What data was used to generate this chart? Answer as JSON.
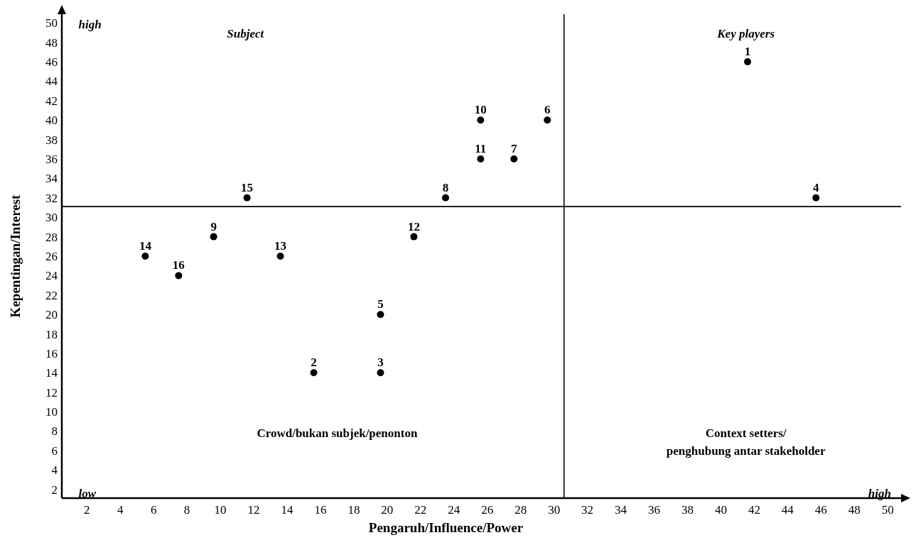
{
  "chart_data": {
    "type": "scatter",
    "xlabel": "Pengaruh/Influence/Power",
    "ylabel": "Kepentingan/Interest",
    "marker": "circle",
    "grid": false,
    "legend": false,
    "xlim": [
      0.5,
      50.8
    ],
    "ylim": [
      1.1,
      50.9
    ],
    "xticks": [
      2,
      4,
      6,
      8,
      10,
      12,
      14,
      16,
      18,
      20,
      22,
      24,
      26,
      28,
      30,
      32,
      34,
      36,
      38,
      40,
      42,
      44,
      46,
      48,
      50
    ],
    "yticks": [
      2,
      4,
      6,
      8,
      10,
      12,
      14,
      16,
      18,
      20,
      22,
      24,
      26,
      28,
      30,
      32,
      34,
      36,
      38,
      40,
      42,
      44,
      46,
      48,
      50
    ],
    "ref_lines": [
      {
        "axis": "x",
        "value": 30.6,
        "color": "#000000"
      },
      {
        "axis": "y",
        "value": 31.1,
        "color": "#000000"
      }
    ],
    "series": [
      {
        "name": "1",
        "color": "#000000",
        "x": [
          41.6
        ],
        "values": [
          46
        ]
      },
      {
        "name": "2",
        "color": "#000000",
        "x": [
          15.6
        ],
        "values": [
          14
        ]
      },
      {
        "name": "3",
        "color": "#000000",
        "x": [
          19.6
        ],
        "values": [
          14
        ]
      },
      {
        "name": "4",
        "color": "#000000",
        "x": [
          45.7
        ],
        "values": [
          32
        ]
      },
      {
        "name": "5",
        "color": "#000000",
        "x": [
          19.6
        ],
        "values": [
          20
        ]
      },
      {
        "name": "6",
        "color": "#000000",
        "x": [
          29.6
        ],
        "values": [
          40
        ]
      },
      {
        "name": "7",
        "color": "#000000",
        "x": [
          27.6
        ],
        "values": [
          36
        ]
      },
      {
        "name": "8",
        "color": "#000000",
        "x": [
          23.5
        ],
        "values": [
          32
        ]
      },
      {
        "name": "9",
        "color": "#000000",
        "x": [
          9.6
        ],
        "values": [
          28
        ]
      },
      {
        "name": "10",
        "color": "#000000",
        "x": [
          25.6
        ],
        "values": [
          40
        ]
      },
      {
        "name": "11",
        "color": "#000000",
        "x": [
          25.6
        ],
        "values": [
          36
        ]
      },
      {
        "name": "12",
        "color": "#000000",
        "x": [
          21.6
        ],
        "values": [
          28
        ]
      },
      {
        "name": "13",
        "color": "#000000",
        "x": [
          13.6
        ],
        "values": [
          26
        ]
      },
      {
        "name": "14",
        "color": "#000000",
        "x": [
          5.5
        ],
        "values": [
          26
        ]
      },
      {
        "name": "15",
        "color": "#000000",
        "x": [
          11.6
        ],
        "values": [
          32
        ]
      },
      {
        "name": "16",
        "color": "#000000",
        "x": [
          7.5
        ],
        "values": [
          24
        ]
      }
    ],
    "annotations": [
      "high",
      "low",
      "high",
      "Subject",
      "Key players",
      "Crowd/bukan subjek/penonton",
      "Context setters/\npenghubung antar stakeholder"
    ]
  }
}
